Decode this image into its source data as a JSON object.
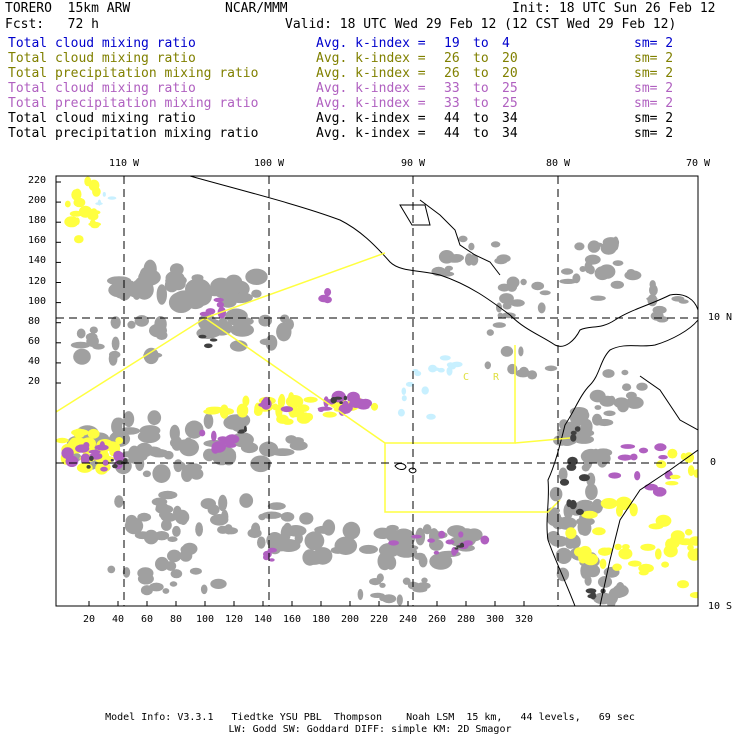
{
  "header": {
    "model": "TORERO  15km ARW",
    "org": "NCAR/MMM",
    "init": "Init: 18 UTC Sun 26 Feb 12",
    "fcst": "Fcst:   72 h",
    "valid": "Valid: 18 UTC Wed 29 Feb 12 (12 CST Wed 29 Feb 12)"
  },
  "legend": [
    {
      "name": "Total cloud mixing ratio",
      "k1": "19",
      "k2": "4",
      "sm": "sm= 2",
      "color": "#0000cc"
    },
    {
      "name": "Total cloud mixing ratio",
      "k1": "26",
      "k2": "20",
      "sm": "sm= 2",
      "color": "#808000"
    },
    {
      "name": "Total precipitation mixing ratio",
      "k1": "26",
      "k2": "20",
      "sm": "sm= 2",
      "color": "#808000"
    },
    {
      "name": "Total cloud mixing ratio",
      "k1": "33",
      "k2": "25",
      "sm": "sm= 2",
      "color": "#b060c0"
    },
    {
      "name": "Total precipitation mixing ratio",
      "k1": "33",
      "k2": "25",
      "sm": "sm= 2",
      "color": "#b060c0"
    },
    {
      "name": "Total cloud mixing ratio",
      "k1": "44",
      "k2": "34",
      "sm": "sm= 2",
      "color": "#000000"
    },
    {
      "name": "Total precipitation mixing ratio",
      "k1": "44",
      "k2": "34",
      "sm": "sm= 2",
      "color": "#000000"
    }
  ],
  "legend_text": {
    "k_label": "Avg. k-index =",
    "to": "to"
  },
  "map": {
    "lon_labels": [
      "110 W",
      "100 W",
      "90 W",
      "80 W",
      "70 W"
    ],
    "lat_labels": [
      "10 N",
      "0",
      "10 S"
    ],
    "y_ticks": [
      "220",
      "200",
      "180",
      "160",
      "140",
      "120",
      "100",
      "80",
      "60",
      "40",
      "20"
    ],
    "x_ticks": [
      "20",
      "40",
      "60",
      "80",
      "100",
      "120",
      "140",
      "160",
      "180",
      "200",
      "220",
      "240",
      "260",
      "280",
      "300",
      "320"
    ],
    "box_labels": [
      "C",
      "R"
    ],
    "colors": {
      "gray": "#a0a0a0",
      "dark": "#404040",
      "yellow": "#ffff40",
      "purple": "#b060c0",
      "cyan": "#c8f0ff",
      "boundary": "#ffff40"
    }
  },
  "footer": {
    "line1": "Model Info: V3.3.1   Tiedtke YSU PBL  Thompson    Noah LSM  15 km,   44 levels,   69 sec",
    "line2": "LW: Godd SW: Goddard DIFF: simple KM: 2D Smagor"
  }
}
